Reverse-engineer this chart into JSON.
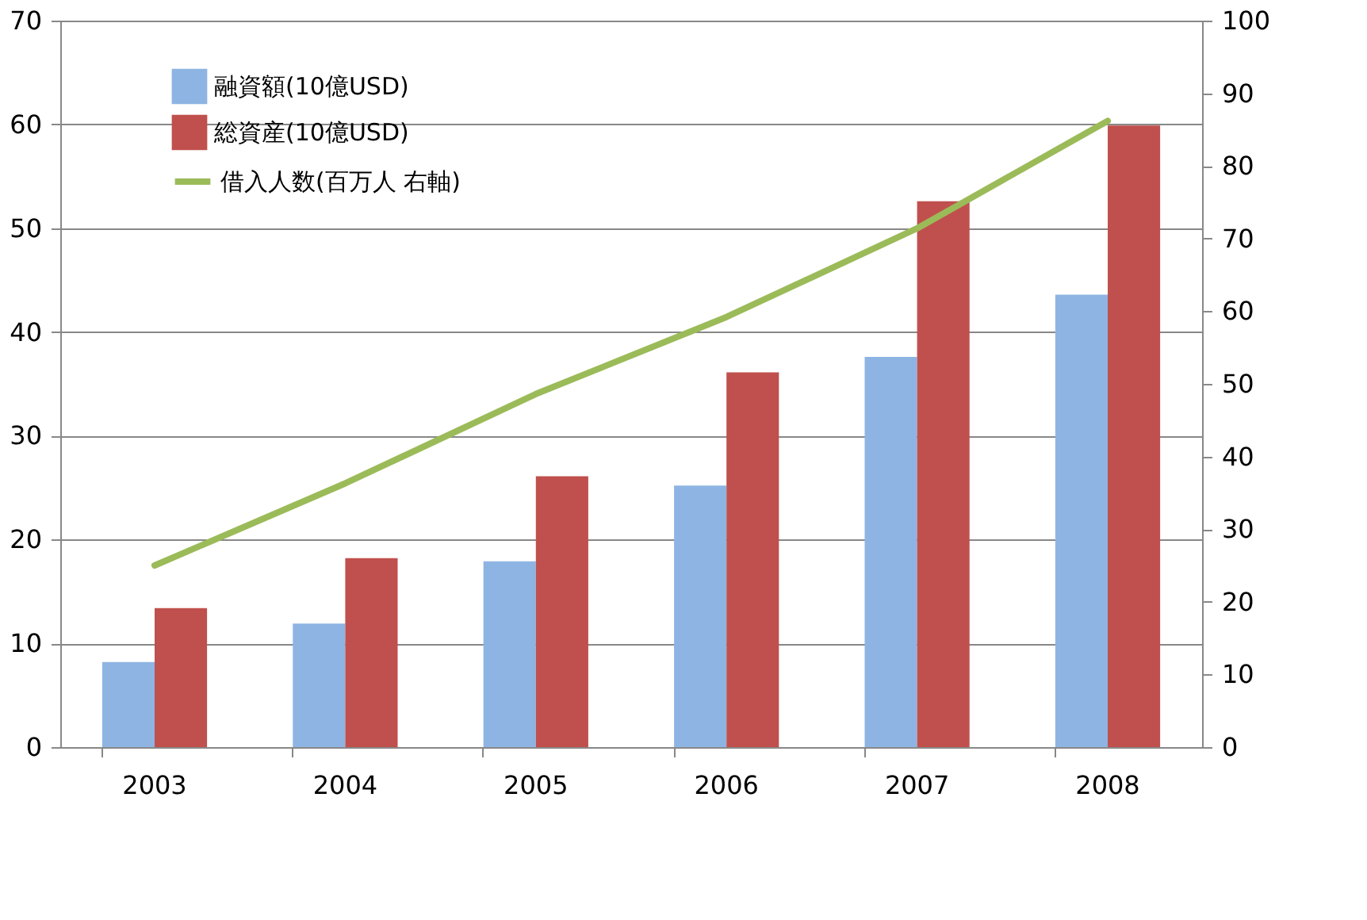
{
  "chart_data": {
    "type": "bar",
    "categories": [
      "2003",
      "2004",
      "2005",
      "2006",
      "2007",
      "2008"
    ],
    "series": [
      {
        "name": "融資額(10億USD)",
        "color": "#8eb4e3",
        "values": [
          8.2,
          11.9,
          17.9,
          25.2,
          37.6,
          43.6
        ]
      },
      {
        "name": "総資産(10億USD)",
        "color": "#c0504d",
        "values": [
          13.4,
          18.2,
          26.1,
          36.1,
          52.6,
          59.9
        ]
      },
      {
        "name": "借入人数(百万人 右軸)",
        "color": "#9bbb59",
        "type": "line",
        "axis": "y2",
        "values": [
          25.0,
          36.3,
          48.6,
          59.2,
          71.4,
          86.2
        ]
      }
    ],
    "ylim": [
      0,
      70
    ],
    "yticks": [
      0,
      10,
      20,
      30,
      40,
      50,
      60,
      70
    ],
    "y2lim": [
      0,
      100
    ],
    "y2ticks": [
      0,
      10,
      20,
      30,
      40,
      50,
      60,
      70,
      80,
      90,
      100
    ],
    "grid": "y",
    "legend": "top left"
  }
}
